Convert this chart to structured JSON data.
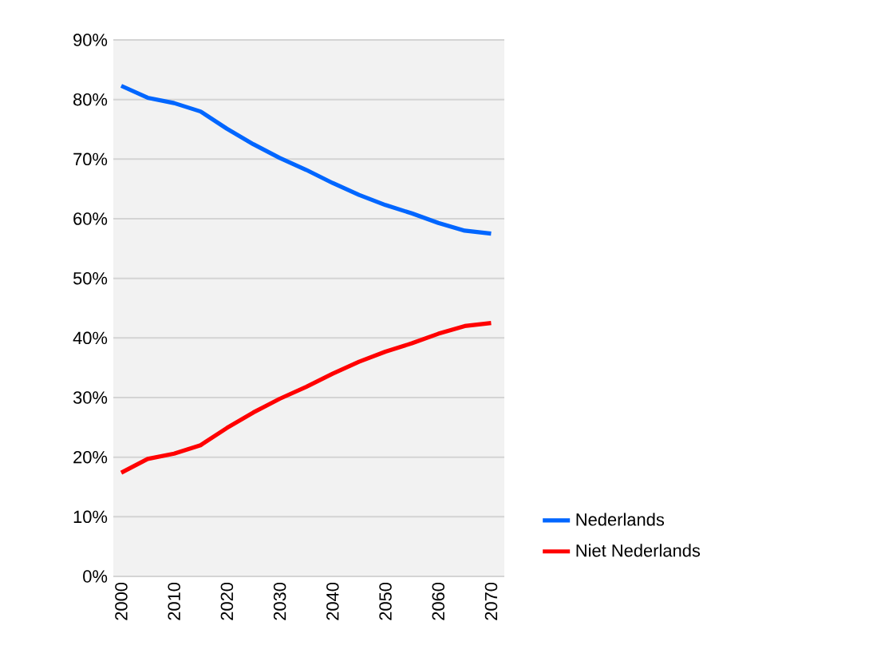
{
  "chart_data": {
    "type": "line",
    "x": [
      2000,
      2005,
      2010,
      2015,
      2020,
      2025,
      2030,
      2035,
      2040,
      2045,
      2050,
      2055,
      2060,
      2065,
      2070
    ],
    "series": [
      {
        "name": "Nederlands",
        "color": "#0066ff",
        "values": [
          82.3,
          80.3,
          79.4,
          78.0,
          75.1,
          72.5,
          70.2,
          68.2,
          66.0,
          64.0,
          62.3,
          60.9,
          59.3,
          58.0,
          57.5
        ]
      },
      {
        "name": "Niet Nederlands",
        "color": "#ff0000",
        "values": [
          17.4,
          19.7,
          20.6,
          22.0,
          24.9,
          27.5,
          29.8,
          31.8,
          34.0,
          36.0,
          37.7,
          39.1,
          40.7,
          42.0,
          42.5
        ]
      }
    ],
    "xlim": [
      1998.5,
      2072.5
    ],
    "xticks": [
      2000,
      2010,
      2020,
      2030,
      2040,
      2050,
      2060,
      2070
    ],
    "ylim": [
      0,
      90
    ],
    "yticks": [
      {
        "value": 0,
        "label": "0%"
      },
      {
        "value": 10,
        "label": "10%"
      },
      {
        "value": 20,
        "label": "20%"
      },
      {
        "value": 30,
        "label": "30%"
      },
      {
        "value": 40,
        "label": "40%"
      },
      {
        "value": 50,
        "label": "50%"
      },
      {
        "value": 60,
        "label": "60%"
      },
      {
        "value": 70,
        "label": "70%"
      },
      {
        "value": 80,
        "label": "80%"
      },
      {
        "value": 90,
        "label": "90%"
      }
    ],
    "grid": "y",
    "legend": "bottom right",
    "marker": "none",
    "line_style": "solid"
  }
}
